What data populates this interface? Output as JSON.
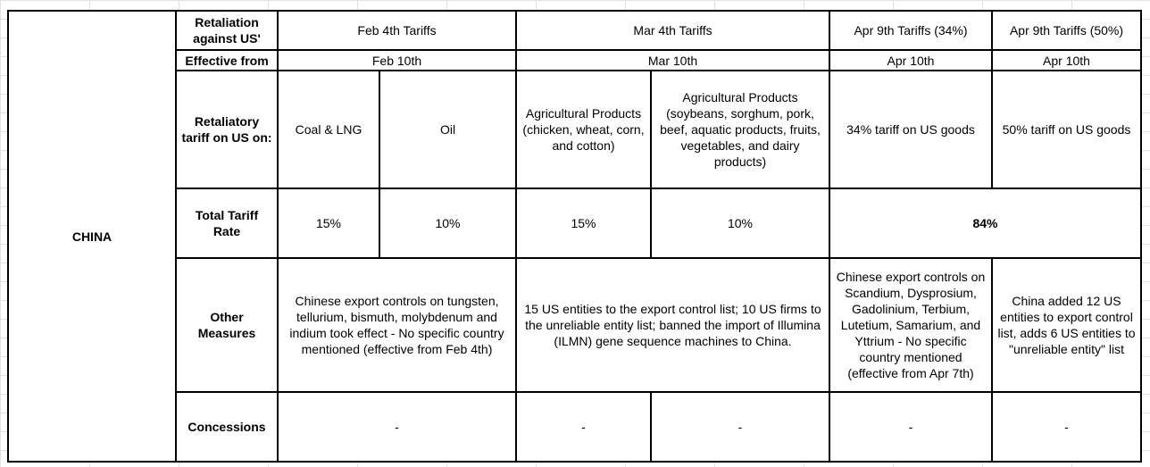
{
  "region": "CHINA",
  "header": {
    "label": "Retaliation against US'",
    "columns": [
      "Feb 4th Tariffs",
      "Mar 4th Tariffs",
      "Apr 9th Tariffs (34%)",
      "Apr 9th Tariffs (50%)"
    ]
  },
  "effective": {
    "label": "Effective from",
    "values": [
      "Feb 10th",
      "Mar 10th",
      "Apr 10th",
      "Apr 10th"
    ]
  },
  "retaliatory": {
    "label": "Retaliatory tariff on US on:",
    "values": [
      "Coal & LNG",
      "Oil",
      "Agricultural Products (chicken, wheat, corn, and cotton)",
      "Agricultural Products (soybeans, sorghum, pork, beef, aquatic products, fruits, vegetables, and dairy products)",
      "34% tariff on US goods",
      "50% tariff on US goods"
    ]
  },
  "total_rate": {
    "label": "Total Tariff Rate",
    "values": [
      "15%",
      "10%",
      "15%",
      "10%",
      "84%"
    ]
  },
  "other_measures": {
    "label": "Other Measures",
    "values": [
      "Chinese export controls on tungsten, tellurium, bismuth, molybdenum and indium took effect - No specific country mentioned (effective from Feb 4th)",
      "15 US entities to the export control list; 10 US firms to the unreliable entity list; banned the import of Illumina (ILMN) gene sequence machines to China.",
      "Chinese export controls on Scandium, Dysprosium, Gadolinium, Terbium, Lutetium, Samarium, and Yttrium  - No specific country mentioned (effective from Apr 7th)",
      "China added 12 US entities to export control list, adds 6 US entities to \"unreliable entity\" list"
    ]
  },
  "concessions": {
    "label": "Concessions",
    "values": [
      "-",
      "-",
      "-",
      "-",
      "-"
    ]
  }
}
